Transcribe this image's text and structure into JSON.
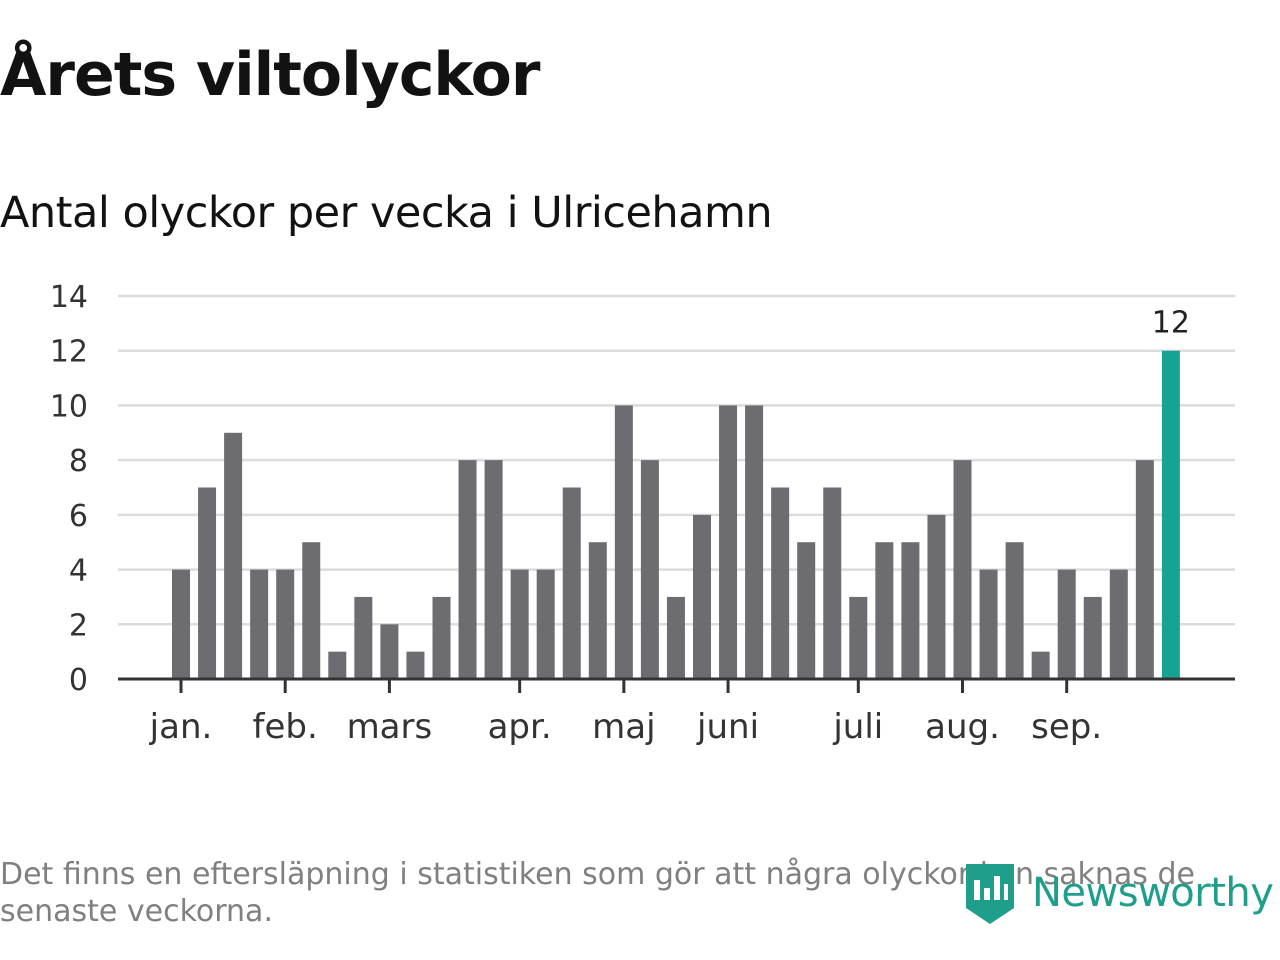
{
  "title": "Årets viltolyckor",
  "subtitle": "Antal olyckor per vecka i Ulricehamn",
  "footnote": "Det finns en eftersläpning i statistiken som gör att några olyckor kan saknas de senaste veckorna.",
  "brand": {
    "name": "Newsworthy",
    "icon": "newsworthy-logo-icon",
    "color": "#1f9e8c"
  },
  "colors": {
    "bar": "#6d6c71",
    "highlight": "#17a391",
    "grid": "#dcdcdc",
    "axis": "#333333"
  },
  "chart_data": {
    "type": "bar",
    "values": [
      4,
      7,
      9,
      4,
      4,
      5,
      1,
      3,
      2,
      1,
      3,
      8,
      8,
      4,
      4,
      7,
      5,
      10,
      8,
      3,
      6,
      10,
      10,
      7,
      5,
      7,
      3,
      5,
      5,
      6,
      8,
      4,
      5,
      1,
      4,
      3,
      4,
      8,
      12
    ],
    "highlight_index": 38,
    "data_labels": [
      {
        "index": 38,
        "text": "12"
      }
    ],
    "yticks": [
      "0",
      "2",
      "4",
      "6",
      "8",
      "10",
      "12",
      "14"
    ],
    "ylim": [
      0,
      14
    ],
    "month_ticks": [
      {
        "label": "jan.",
        "bar_index": 0
      },
      {
        "label": "feb.",
        "bar_index": 4
      },
      {
        "label": "mars",
        "bar_index": 8
      },
      {
        "label": "apr.",
        "bar_index": 13
      },
      {
        "label": "maj",
        "bar_index": 17
      },
      {
        "label": "juni",
        "bar_index": 21
      },
      {
        "label": "juli",
        "bar_index": 26
      },
      {
        "label": "aug.",
        "bar_index": 30
      },
      {
        "label": "sep.",
        "bar_index": 34
      }
    ],
    "grid": true
  }
}
